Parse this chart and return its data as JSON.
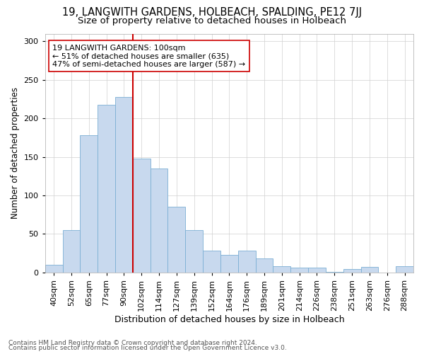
{
  "title1": "19, LANGWITH GARDENS, HOLBEACH, SPALDING, PE12 7JJ",
  "title2": "Size of property relative to detached houses in Holbeach",
  "xlabel": "Distribution of detached houses by size in Holbeach",
  "ylabel": "Number of detached properties",
  "categories": [
    "40sqm",
    "52sqm",
    "65sqm",
    "77sqm",
    "90sqm",
    "102sqm",
    "114sqm",
    "127sqm",
    "139sqm",
    "152sqm",
    "164sqm",
    "176sqm",
    "189sqm",
    "201sqm",
    "214sqm",
    "226sqm",
    "238sqm",
    "251sqm",
    "263sqm",
    "276sqm",
    "288sqm"
  ],
  "values": [
    10,
    55,
    178,
    218,
    228,
    148,
    135,
    85,
    55,
    28,
    23,
    28,
    18,
    8,
    6,
    6,
    1,
    4,
    7,
    0,
    8
  ],
  "bar_color": "#c8d9ee",
  "bar_edge_color": "#7bafd4",
  "vline_color": "#cc0000",
  "annotation_text": "19 LANGWITH GARDENS: 100sqm\n← 51% of detached houses are smaller (635)\n47% of semi-detached houses are larger (587) →",
  "annotation_box_color": "#ffffff",
  "annotation_box_edge_color": "#cc0000",
  "ylim": [
    0,
    310
  ],
  "yticks": [
    0,
    50,
    100,
    150,
    200,
    250,
    300
  ],
  "footer1": "Contains HM Land Registry data © Crown copyright and database right 2024.",
  "footer2": "Contains public sector information licensed under the Open Government Licence v3.0.",
  "bg_color": "#ffffff",
  "grid_color": "#d0d0d0",
  "title1_fontsize": 10.5,
  "title2_fontsize": 9.5,
  "tick_fontsize": 8,
  "ylabel_fontsize": 8.5,
  "xlabel_fontsize": 9,
  "footer_fontsize": 6.5,
  "annot_fontsize": 8
}
